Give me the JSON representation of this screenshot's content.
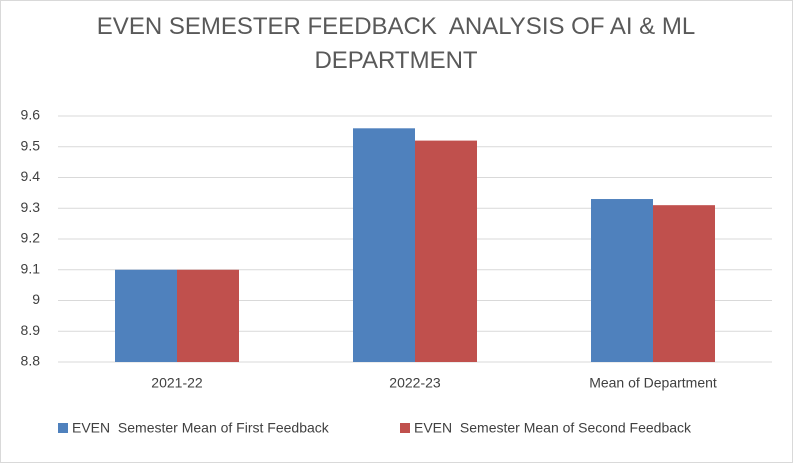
{
  "chart_data": {
    "type": "bar",
    "title": "EVEN SEMESTER FEEDBACK  ANALYSIS OF AI & ML DEPARTMENT",
    "categories": [
      "2021-22",
      "2022-23",
      "Mean of Department"
    ],
    "series": [
      {
        "name": "EVEN  Semester Mean of First Feedback",
        "color": "#4f81bd",
        "values": [
          9.1,
          9.56,
          9.33
        ]
      },
      {
        "name": "EVEN  Semester Mean of Second Feedback",
        "color": "#c0504d",
        "values": [
          9.1,
          9.52,
          9.31
        ]
      }
    ],
    "ylim": [
      8.8,
      9.6
    ],
    "yticks": [
      8.8,
      8.9,
      9,
      9.1,
      9.2,
      9.3,
      9.4,
      9.5,
      9.6
    ],
    "grid": true,
    "legend": "bottom"
  }
}
